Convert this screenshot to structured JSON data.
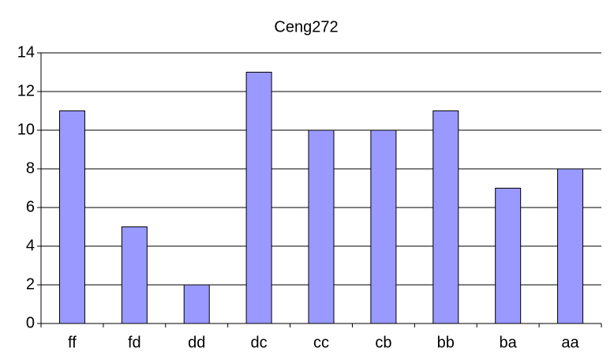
{
  "chart_data": {
    "type": "bar",
    "title": "Ceng272",
    "categories": [
      "ff",
      "fd",
      "dd",
      "dc",
      "cc",
      "cb",
      "bb",
      "ba",
      "aa"
    ],
    "values": [
      11,
      5,
      2,
      13,
      10,
      10,
      11,
      7,
      8
    ],
    "color": "#9999ff",
    "ylim": [
      0,
      14
    ],
    "yticks": [
      0,
      2,
      4,
      6,
      8,
      10,
      12,
      14
    ],
    "grid": true
  }
}
